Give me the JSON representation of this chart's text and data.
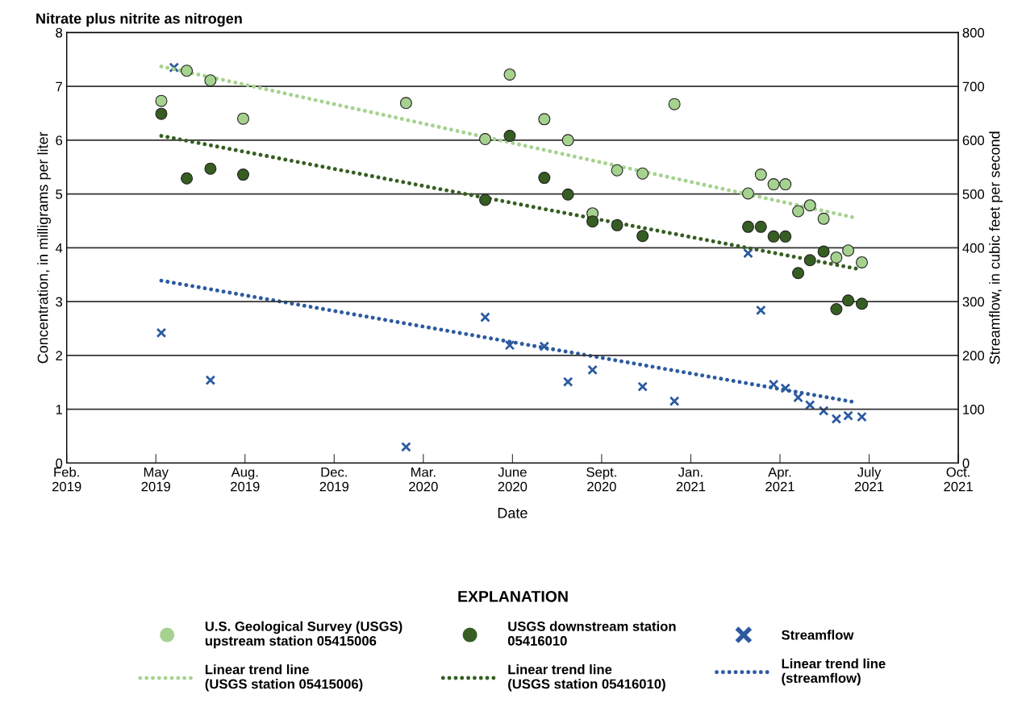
{
  "chart_data": {
    "type": "scatter",
    "title": "Nitrate plus nitrite as nitrogen",
    "xlabel": "Date",
    "ylabel": "Concentration, in milligrams per liter",
    "y2label": "Streamflow, in cubic feet per second",
    "legend_title": "EXPLANATION",
    "xlim": [
      "2019-02-15",
      "2021-10-22"
    ],
    "xticks": [
      {
        "value": "2019-02-15",
        "label": "Feb.\n2019"
      },
      {
        "value": "2019-05-24",
        "label": "May\n2019"
      },
      {
        "value": "2019-08-30",
        "label": "Aug.\n2019"
      },
      {
        "value": "2019-12-06",
        "label": "Dec.\n2019"
      },
      {
        "value": "2020-03-13",
        "label": "Mar.\n2020"
      },
      {
        "value": "2020-06-19",
        "label": "June\n2020"
      },
      {
        "value": "2020-09-25",
        "label": "Sept.\n2020"
      },
      {
        "value": "2021-01-01",
        "label": "Jan.\n2021"
      },
      {
        "value": "2021-04-09",
        "label": "Apr.\n2021"
      },
      {
        "value": "2021-07-16",
        "label": "July\n2021"
      },
      {
        "value": "2021-10-22",
        "label": "Oct.\n2021"
      }
    ],
    "ylim": [
      0,
      8
    ],
    "yticks": [
      0,
      1,
      2,
      3,
      4,
      5,
      6,
      7,
      8
    ],
    "y2lim": [
      0,
      800
    ],
    "y2ticks": [
      0,
      100,
      200,
      300,
      400,
      500,
      600,
      700,
      800
    ],
    "grid": "y",
    "legend": "bottom",
    "series": [
      {
        "name": "U.S. Geological Survey (USGS)\nupstream station 05415006",
        "marker": "circle",
        "color": "#a6d28f",
        "x": [
          "2019-05-30",
          "2019-06-27",
          "2019-07-23",
          "2019-08-28",
          "2020-02-23",
          "2020-05-20",
          "2020-06-16",
          "2020-07-24",
          "2020-08-19",
          "2020-09-15",
          "2020-10-12",
          "2020-11-09",
          "2020-12-14",
          "2021-03-05",
          "2021-03-19",
          "2021-04-02",
          "2021-04-15",
          "2021-04-29",
          "2021-05-12",
          "2021-05-27",
          "2021-06-10",
          "2021-06-23",
          "2021-07-08"
        ],
        "values": [
          6.73,
          7.29,
          7.11,
          6.4,
          6.69,
          6.02,
          7.22,
          6.39,
          6.0,
          4.64,
          5.44,
          5.38,
          6.67,
          5.01,
          5.36,
          5.18,
          5.18,
          4.68,
          4.79,
          4.54,
          3.82,
          3.95,
          3.73
        ]
      },
      {
        "name": "USGS downstream station\n05416010",
        "marker": "circle",
        "color": "#365e22",
        "x": [
          "2019-05-30",
          "2019-06-27",
          "2019-07-23",
          "2019-08-28",
          "2020-05-20",
          "2020-06-16",
          "2020-07-24",
          "2020-08-19",
          "2020-09-15",
          "2020-10-12",
          "2020-11-09",
          "2021-03-05",
          "2021-03-19",
          "2021-04-02",
          "2021-04-15",
          "2021-04-29",
          "2021-05-12",
          "2021-05-27",
          "2021-06-10",
          "2021-06-23",
          "2021-07-08"
        ],
        "values": [
          6.49,
          5.29,
          5.47,
          5.36,
          4.89,
          6.08,
          5.3,
          4.99,
          4.49,
          4.42,
          4.22,
          4.39,
          4.39,
          4.21,
          4.21,
          3.53,
          3.77,
          3.93,
          2.86,
          3.02,
          2.96
        ]
      },
      {
        "name": "Streamflow",
        "marker": "cross",
        "axis": "y2",
        "color": "#2c5aa0",
        "x": [
          "2019-05-30",
          "2019-06-13",
          "2019-07-23",
          "2020-02-23",
          "2020-05-20",
          "2020-06-16",
          "2020-07-24",
          "2020-08-19",
          "2020-09-15",
          "2020-11-09",
          "2020-12-14",
          "2021-03-05",
          "2021-03-19",
          "2021-04-02",
          "2021-04-15",
          "2021-04-29",
          "2021-05-12",
          "2021-05-27",
          "2021-06-10",
          "2021-06-23",
          "2021-07-08"
        ],
        "values": [
          242,
          735,
          154,
          30,
          271,
          219,
          217,
          151,
          173,
          142,
          115,
          390,
          284,
          146,
          139,
          122,
          108,
          97,
          82,
          88,
          86
        ]
      },
      {
        "name": "Linear trend line\n(USGS station 05415006)",
        "type": "line",
        "line_style": "dotted",
        "color": "#a6d28f",
        "x": [
          "2019-05-30",
          "2021-07-03"
        ],
        "values": [
          7.37,
          4.55
        ]
      },
      {
        "name": "Linear trend line\n(USGS station 05416010)",
        "type": "line",
        "line_style": "dotted",
        "color": "#365e22",
        "x": [
          "2019-05-30",
          "2021-07-06"
        ],
        "values": [
          6.08,
          3.6
        ]
      },
      {
        "name": "Linear trend line\n(streamflow)",
        "type": "line",
        "line_style": "dotted",
        "axis": "y2",
        "color": "#2c5aa0",
        "x": [
          "2019-05-30",
          "2021-07-01"
        ],
        "values": [
          339,
          113
        ]
      }
    ]
  }
}
